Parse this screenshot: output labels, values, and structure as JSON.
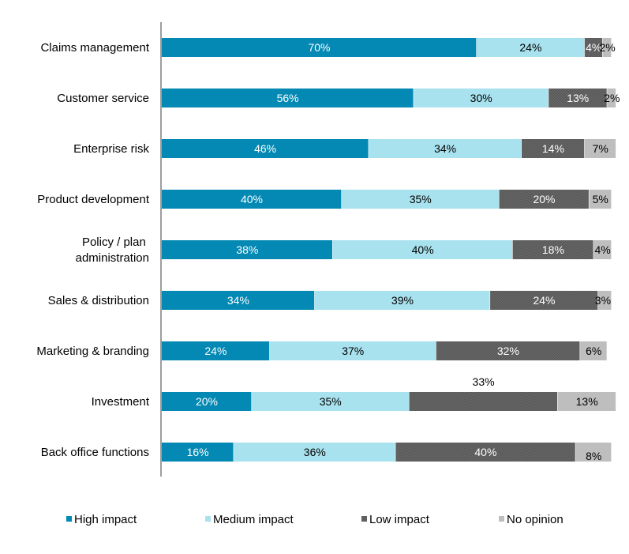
{
  "chart_data": {
    "type": "bar",
    "orientation": "horizontal",
    "stacked": true,
    "categories": [
      "Claims management",
      "Customer service",
      "Enterprise risk",
      "Product development",
      "Policy / plan administration",
      "Sales & distribution",
      "Marketing & branding",
      "Investment",
      "Back office functions"
    ],
    "series": [
      {
        "name": "High impact",
        "color": "#0389B3",
        "values": [
          70,
          56,
          46,
          40,
          38,
          34,
          24,
          20,
          16
        ],
        "labels": [
          "70%",
          "56%",
          "46%",
          "40%",
          "38%",
          "34%",
          "24%",
          "20%",
          "16%"
        ]
      },
      {
        "name": "Medium impact",
        "color": "#A8E2EE",
        "values": [
          24,
          30,
          34,
          35,
          40,
          39,
          37,
          35,
          36
        ],
        "labels": [
          "24%",
          "30%",
          "34%",
          "35%",
          "40%",
          "39%",
          "37%",
          "35%",
          "36%"
        ]
      },
      {
        "name": "Low impact",
        "color": "#5B5B5B",
        "values": [
          4,
          13,
          14,
          20,
          18,
          24,
          32,
          33,
          40
        ],
        "labels": [
          "4%",
          "13%",
          "14%",
          "20%",
          "18%",
          "24%",
          "32%",
          "33%",
          "40%"
        ]
      },
      {
        "name": "No opinion",
        "color": "#BEBEBE",
        "values": [
          2,
          2,
          7,
          5,
          4,
          3,
          6,
          13,
          8
        ],
        "labels": [
          "2%",
          "2%",
          "7%",
          "5%",
          "4%",
          "3%",
          "6%",
          "13%",
          "8%"
        ]
      }
    ],
    "xlim": [
      0,
      100
    ],
    "legend_position": "bottom",
    "title": "",
    "xlabel": "",
    "ylabel": ""
  }
}
